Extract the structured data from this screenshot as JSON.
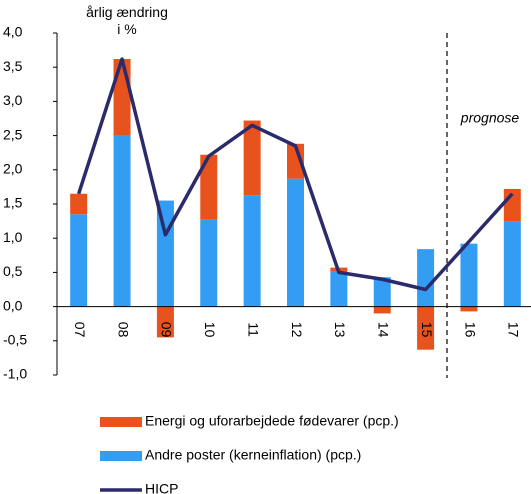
{
  "chart_data": {
    "type": "stacked-bar-line",
    "ylabel": "årlig ændring i %",
    "annotation": "prognose",
    "categories": [
      "07",
      "08",
      "09",
      "10",
      "11",
      "12",
      "13",
      "14",
      "15",
      "16",
      "17"
    ],
    "series": [
      {
        "name": "Energi og uforarbejdede fødevarer (pcp.)",
        "color": "#e8531d",
        "kind": "bar",
        "values": [
          0.3,
          1.12,
          -0.45,
          0.94,
          1.09,
          0.51,
          0.05,
          -0.1,
          -0.63,
          -0.07,
          0.47
        ]
      },
      {
        "name": "Andre poster (kerneinflation) (pcp.)",
        "color": "#339cf3",
        "kind": "bar",
        "values": [
          1.35,
          2.5,
          1.55,
          1.28,
          1.63,
          1.87,
          0.52,
          0.43,
          0.84,
          0.92,
          1.25
        ]
      },
      {
        "name": "HICP",
        "color": "#2b2a6b",
        "kind": "line",
        "values": [
          1.65,
          3.62,
          1.05,
          2.2,
          2.65,
          2.35,
          0.5,
          0.4,
          0.25,
          0.95,
          1.65
        ]
      }
    ],
    "ylim": [
      -1.0,
      4.0
    ],
    "yticks": [
      {
        "value": -1.0,
        "label": "-1,0"
      },
      {
        "value": -0.5,
        "label": "-0,5"
      },
      {
        "value": 0,
        "label": "0,0"
      },
      {
        "value": 0.5,
        "label": "0,5"
      },
      {
        "value": 1.0,
        "label": "1,0"
      },
      {
        "value": 1.5,
        "label": "1,5"
      },
      {
        "value": 2.0,
        "label": "2,0"
      },
      {
        "value": 2.5,
        "label": "2,5"
      },
      {
        "value": 3.0,
        "label": "3,0"
      },
      {
        "value": 3.5,
        "label": "3,5"
      },
      {
        "value": 4.0,
        "label": "4,0"
      }
    ]
  }
}
